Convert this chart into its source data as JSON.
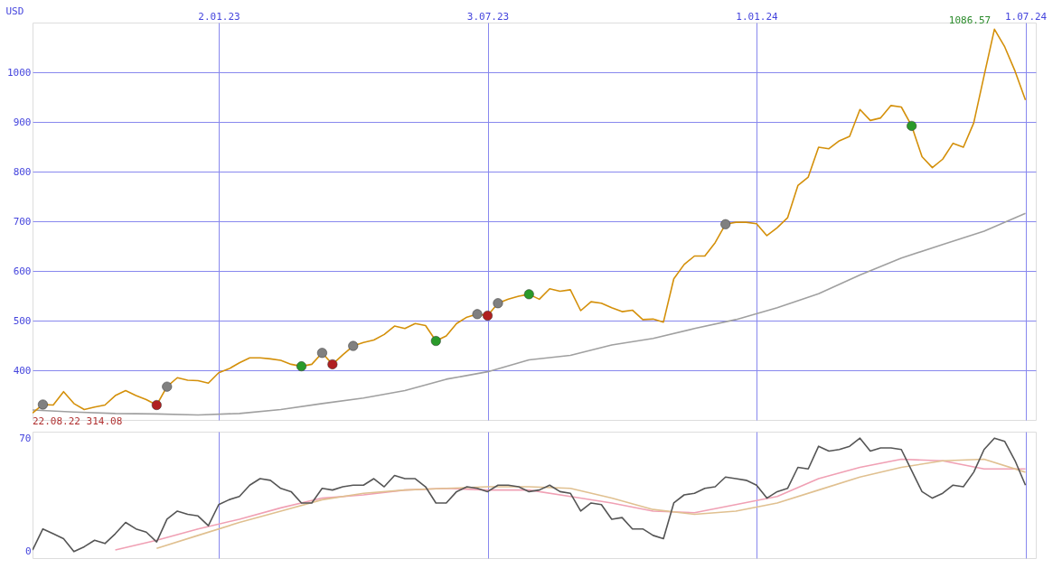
{
  "chart_data": [
    {
      "type": "line",
      "ylabel": "USD",
      "ylim": [
        300,
        1100
      ],
      "yticks": [
        400,
        500,
        600,
        700,
        800,
        900,
        1000
      ],
      "xlim": [
        "2022-08-29",
        "2024-07-08"
      ],
      "xticks": [
        {
          "value": "2023-01-02",
          "label": "2.01.23"
        },
        {
          "value": "2023-07-03",
          "label": "3.07.23"
        },
        {
          "value": "2024-01-01",
          "label": "1.01.24"
        },
        {
          "value": "2024-07-01",
          "label": "1.07.24"
        }
      ],
      "grid": true,
      "x": [
        "2022-08-29",
        "2022-09-05",
        "2022-09-12",
        "2022-09-19",
        "2022-09-26",
        "2022-10-03",
        "2022-10-10",
        "2022-10-17",
        "2022-10-24",
        "2022-10-31",
        "2022-11-07",
        "2022-11-14",
        "2022-11-21",
        "2022-11-28",
        "2022-12-05",
        "2022-12-12",
        "2022-12-19",
        "2022-12-26",
        "2023-01-02",
        "2023-01-09",
        "2023-01-16",
        "2023-01-23",
        "2023-01-30",
        "2023-02-06",
        "2023-02-13",
        "2023-02-20",
        "2023-02-27",
        "2023-03-06",
        "2023-03-13",
        "2023-03-20",
        "2023-03-27",
        "2023-04-03",
        "2023-04-10",
        "2023-04-17",
        "2023-04-24",
        "2023-05-01",
        "2023-05-08",
        "2023-05-15",
        "2023-05-22",
        "2023-05-29",
        "2023-06-05",
        "2023-06-12",
        "2023-06-19",
        "2023-06-26",
        "2023-07-03",
        "2023-07-10",
        "2023-07-17",
        "2023-07-24",
        "2023-07-31",
        "2023-08-07",
        "2023-08-14",
        "2023-08-21",
        "2023-08-28",
        "2023-09-04",
        "2023-09-11",
        "2023-09-18",
        "2023-09-25",
        "2023-10-02",
        "2023-10-09",
        "2023-10-16",
        "2023-10-23",
        "2023-10-30",
        "2023-11-06",
        "2023-11-13",
        "2023-11-20",
        "2023-11-27",
        "2023-12-04",
        "2023-12-11",
        "2023-12-18",
        "2023-12-25",
        "2024-01-01",
        "2024-01-08",
        "2024-01-15",
        "2024-01-22",
        "2024-01-29",
        "2024-02-05",
        "2024-02-12",
        "2024-02-19",
        "2024-02-26",
        "2024-03-04",
        "2024-03-11",
        "2024-03-18",
        "2024-03-25",
        "2024-04-01",
        "2024-04-08",
        "2024-04-15",
        "2024-04-22",
        "2024-04-29",
        "2024-05-06",
        "2024-05-13",
        "2024-05-20",
        "2024-05-27",
        "2024-06-03",
        "2024-06-10",
        "2024-06-17",
        "2024-06-24",
        "2024-07-01"
      ],
      "series": [
        {
          "color": "#a0a0a0",
          "x": [
            "2022-08-29",
            "2022-09-26",
            "2022-10-24",
            "2022-11-21",
            "2022-12-19",
            "2023-01-16",
            "2023-02-13",
            "2023-03-13",
            "2023-04-10",
            "2023-05-08",
            "2023-06-05",
            "2023-07-03",
            "2023-07-31",
            "2023-08-28",
            "2023-09-25",
            "2023-10-23",
            "2023-11-20",
            "2023-12-18",
            "2024-01-15",
            "2024-02-12",
            "2024-03-11",
            "2024-04-08",
            "2024-05-06",
            "2024-06-03",
            "2024-07-01"
          ],
          "values": [
            320,
            316,
            313,
            312,
            310,
            313,
            321,
            333,
            344,
            359,
            382,
            397,
            421,
            430,
            451,
            464,
            484,
            502,
            526,
            554,
            592,
            626,
            653,
            680,
            716
          ]
        },
        {
          "color": "#d4900a",
          "values": [
            314.08,
            331,
            330,
            357,
            333,
            321,
            326,
            330,
            349,
            359,
            349,
            341,
            330,
            367,
            385,
            380,
            379,
            374,
            395,
            403,
            415,
            425,
            425,
            423,
            420,
            412,
            408,
            412,
            435,
            412,
            431,
            449,
            456,
            461,
            472,
            489,
            484,
            494,
            490,
            459,
            469,
            494,
            507,
            513,
            510,
            535,
            543,
            549,
            553,
            543,
            564,
            559,
            562,
            520,
            538,
            535,
            526,
            518,
            521,
            502,
            503,
            497,
            584,
            613,
            630,
            630,
            657,
            694,
            698,
            698,
            695,
            671,
            687,
            707,
            772,
            789,
            849,
            846,
            862,
            871,
            925,
            903,
            908,
            933,
            930,
            892,
            830,
            808,
            825,
            857,
            849,
            898,
            993,
            1086.57,
            1051,
            1002,
            944
          ]
        },
        {
          "type": "scatter",
          "color": "#808080",
          "x": [
            "2022-09-05",
            "2022-11-28",
            "2023-03-13",
            "2023-04-03",
            "2023-06-26",
            "2023-07-10",
            "2023-12-11"
          ],
          "values": [
            331,
            367,
            435,
            449,
            513,
            535,
            694
          ]
        },
        {
          "type": "scatter",
          "color": "#2a9a2a",
          "x": [
            "2023-02-27",
            "2023-05-29",
            "2023-07-31",
            "2024-04-15"
          ],
          "values": [
            408,
            459,
            553,
            892
          ]
        },
        {
          "type": "scatter",
          "color": "#b02020",
          "x": [
            "2022-11-21",
            "2023-03-20",
            "2023-07-03"
          ],
          "values": [
            330,
            412,
            510
          ]
        }
      ],
      "annotations": [
        {
          "text": "22.08.22 314.08",
          "x": "2022-08-29",
          "y": 314.08
        },
        {
          "text": "1086.57",
          "x": "2024-06-10",
          "y": 1086.57
        }
      ]
    },
    {
      "type": "line",
      "ylim": [
        -4,
        74
      ],
      "yticks": [
        0,
        70
      ],
      "xlim": [
        "2022-08-29",
        "2024-07-08"
      ],
      "xticks": [
        {
          "value": "2023-01-02",
          "label": null
        },
        {
          "value": "2023-07-03",
          "label": null
        },
        {
          "value": "2024-01-01",
          "label": null
        },
        {
          "value": "2024-07-01",
          "label": null
        }
      ],
      "grid": "x",
      "tick_labels": "y",
      "x": [
        "2022-08-29",
        "2022-09-05",
        "2022-09-12",
        "2022-09-19",
        "2022-09-26",
        "2022-10-03",
        "2022-10-10",
        "2022-10-17",
        "2022-10-24",
        "2022-10-31",
        "2022-11-07",
        "2022-11-14",
        "2022-11-21",
        "2022-11-28",
        "2022-12-05",
        "2022-12-12",
        "2022-12-19",
        "2022-12-26",
        "2023-01-02",
        "2023-01-09",
        "2023-01-16",
        "2023-01-23",
        "2023-01-30",
        "2023-02-06",
        "2023-02-13",
        "2023-02-20",
        "2023-02-27",
        "2023-03-06",
        "2023-03-13",
        "2023-03-20",
        "2023-03-27",
        "2023-04-03",
        "2023-04-10",
        "2023-04-17",
        "2023-04-24",
        "2023-05-01",
        "2023-05-08",
        "2023-05-15",
        "2023-05-22",
        "2023-05-29",
        "2023-06-05",
        "2023-06-12",
        "2023-06-19",
        "2023-06-26",
        "2023-07-03",
        "2023-07-10",
        "2023-07-17",
        "2023-07-24",
        "2023-07-31",
        "2023-08-07",
        "2023-08-14",
        "2023-08-21",
        "2023-08-28",
        "2023-09-04",
        "2023-09-11",
        "2023-09-18",
        "2023-09-25",
        "2023-10-02",
        "2023-10-09",
        "2023-10-16",
        "2023-10-23",
        "2023-10-30",
        "2023-11-06",
        "2023-11-13",
        "2023-11-20",
        "2023-11-27",
        "2023-12-04",
        "2023-12-11",
        "2023-12-18",
        "2023-12-25",
        "2024-01-01",
        "2024-01-08",
        "2024-01-15",
        "2024-01-22",
        "2024-01-29",
        "2024-02-05",
        "2024-02-12",
        "2024-02-19",
        "2024-02-26",
        "2024-03-04",
        "2024-03-11",
        "2024-03-18",
        "2024-03-25",
        "2024-04-01",
        "2024-04-08",
        "2024-04-15",
        "2024-04-22",
        "2024-04-29",
        "2024-05-06",
        "2024-05-13",
        "2024-05-20",
        "2024-05-27",
        "2024-06-03",
        "2024-06-10",
        "2024-06-17",
        "2024-06-24",
        "2024-07-01"
      ],
      "series": [
        {
          "color": "#f0a0b4",
          "x": [
            "2022-10-24",
            "2022-11-21",
            "2022-12-19",
            "2023-01-16",
            "2023-02-13",
            "2023-03-13",
            "2023-04-10",
            "2023-05-08",
            "2023-06-05",
            "2023-07-03",
            "2023-07-31",
            "2023-08-28",
            "2023-09-25",
            "2023-10-23",
            "2023-11-20",
            "2023-12-18",
            "2024-01-15",
            "2024-02-12",
            "2024-03-11",
            "2024-04-08",
            "2024-05-06",
            "2024-06-03",
            "2024-07-01"
          ],
          "values": [
            1,
            7,
            14,
            20,
            27,
            33,
            35,
            38,
            39,
            38,
            38,
            34,
            30,
            25,
            24,
            29,
            34,
            45,
            52,
            57,
            56,
            51,
            51
          ]
        },
        {
          "color": "#e0c090",
          "x": [
            "2022-11-21",
            "2022-12-19",
            "2023-01-16",
            "2023-02-13",
            "2023-03-13",
            "2023-04-10",
            "2023-05-08",
            "2023-06-05",
            "2023-07-03",
            "2023-07-31",
            "2023-08-28",
            "2023-09-25",
            "2023-10-23",
            "2023-11-20",
            "2023-12-18",
            "2024-01-15",
            "2024-02-12",
            "2024-03-11",
            "2024-04-08",
            "2024-05-06",
            "2024-06-03",
            "2024-07-01"
          ],
          "values": [
            2,
            10,
            18,
            25,
            32,
            36,
            38,
            39,
            40,
            40,
            39,
            33,
            26,
            23,
            25,
            30,
            38,
            46,
            52,
            56,
            57,
            49
          ]
        },
        {
          "color": "#555555",
          "values": [
            1,
            14,
            11,
            8,
            0,
            3,
            7,
            5,
            11,
            18,
            14,
            12,
            6,
            20,
            25,
            23,
            22,
            16,
            29,
            32,
            34,
            41,
            45,
            44,
            39,
            37,
            30,
            30,
            39,
            38,
            40,
            41,
            41,
            45,
            40,
            47,
            45,
            45,
            40,
            30,
            30,
            37,
            40,
            39,
            37,
            41,
            41,
            40,
            37,
            38,
            41,
            37,
            36,
            25,
            30,
            29,
            20,
            21,
            14,
            14,
            10,
            8,
            30,
            35,
            36,
            39,
            40,
            46,
            45,
            44,
            41,
            33,
            37,
            39,
            52,
            51,
            65,
            62,
            63,
            65,
            70,
            62,
            64,
            64,
            63,
            50,
            37,
            33,
            36,
            41,
            40,
            49,
            63,
            70,
            68,
            56,
            41
          ]
        }
      ]
    }
  ]
}
